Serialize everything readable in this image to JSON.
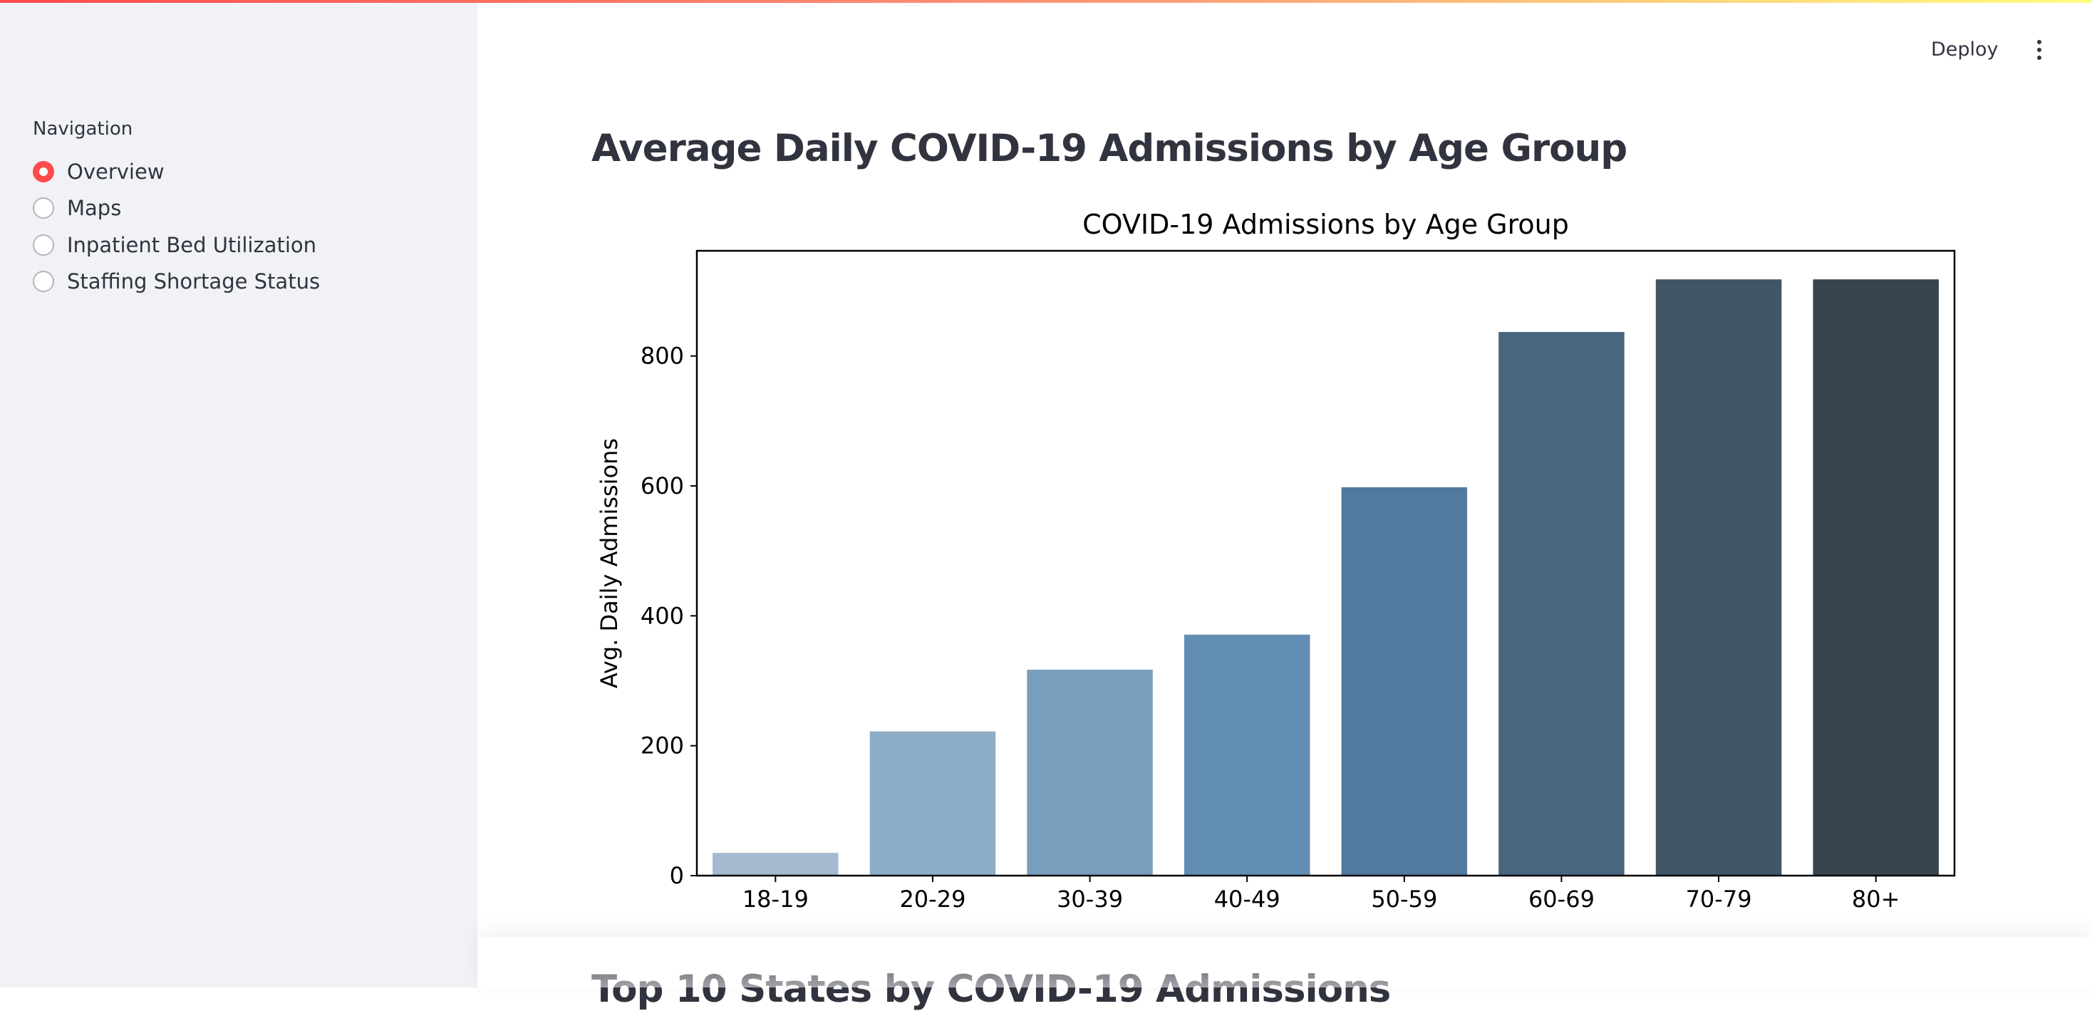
{
  "sidebar": {
    "label": "Navigation",
    "items": [
      {
        "label": "Overview",
        "selected": true
      },
      {
        "label": "Maps",
        "selected": false
      },
      {
        "label": "Inpatient Bed Utilization",
        "selected": false
      },
      {
        "label": "Staffing Shortage Status",
        "selected": false
      }
    ]
  },
  "toolbar": {
    "deploy_label": "Deploy",
    "menu_icon": "kebab-menu-icon"
  },
  "main": {
    "title": "Average Daily COVID-19 Admissions by Age Group",
    "next_section_title": "Top 10 States by COVID-19 Admissions"
  },
  "colors": {
    "accent": "#ff4b4b",
    "sidebar_bg": "#f0f2f6",
    "text": "#31333f"
  },
  "chart_data": {
    "type": "bar",
    "title": "COVID-19 Admissions by Age Group",
    "xlabel": "",
    "ylabel": "Avg. Daily Admissions",
    "categories": [
      "18-19",
      "20-29",
      "30-39",
      "40-49",
      "50-59",
      "60-69",
      "70-79",
      "80+"
    ],
    "values": [
      35,
      222,
      317,
      371,
      598,
      837,
      918,
      918
    ],
    "colors": [
      "#a3bad0",
      "#8eadc7",
      "#789dbd",
      "#618db2",
      "#527aa0",
      "#49667f",
      "#415565",
      "#3a444c"
    ],
    "yticks": [
      0,
      200,
      400,
      600,
      800
    ],
    "ylim": [
      0,
      962
    ],
    "grid": false,
    "legend": "none"
  }
}
